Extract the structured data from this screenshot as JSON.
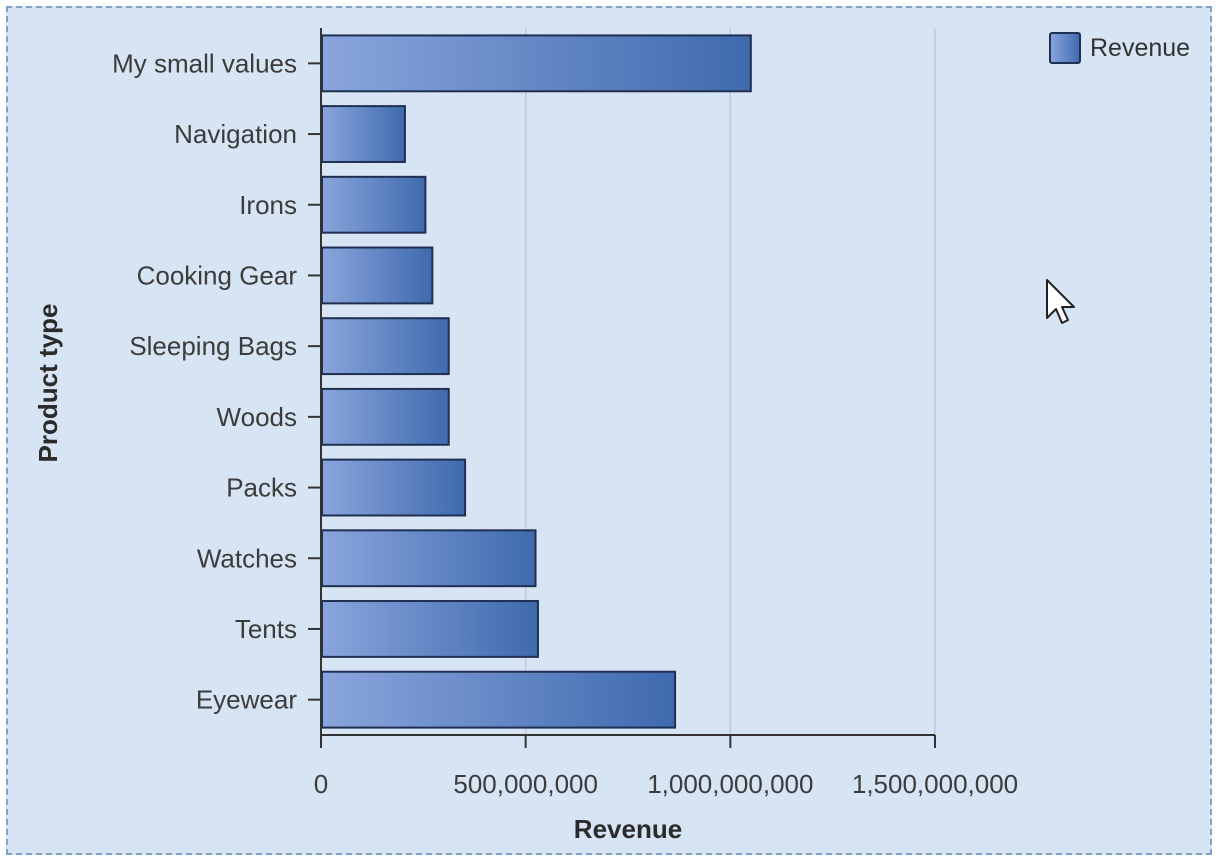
{
  "chart_data": {
    "type": "bar",
    "orientation": "horizontal",
    "categories": [
      "My small values",
      "Navigation",
      "Irons",
      "Cooking Gear",
      "Sleeping Bags",
      "Woods",
      "Packs",
      "Watches",
      "Tents",
      "Eyewear"
    ],
    "series": [
      {
        "name": "Revenue",
        "values": [
          1050000000,
          205000000,
          255000000,
          272000000,
          312000000,
          312000000,
          352000000,
          524000000,
          530000000,
          865000000
        ]
      }
    ],
    "xlabel": "Revenue",
    "ylabel": "Product type",
    "xlim": [
      0,
      1500000000
    ],
    "x_ticks": [
      0,
      500000000,
      1000000000,
      1500000000
    ],
    "x_tick_labels": [
      "0",
      "500,000,000",
      "1,000,000,000",
      "1,500,000,000"
    ],
    "grid": "vertical",
    "legend": "top-right",
    "colors": {
      "bar_light": "#8aa5dc",
      "bar_dark": "#3f6aae",
      "bar_stroke": "#1f2f52",
      "background": "#d6e4f3",
      "frame": "#7fa3c8",
      "gridline": "#c4c8de",
      "axis": "#333333"
    }
  },
  "cursor_icon": "arrow-cursor-icon"
}
